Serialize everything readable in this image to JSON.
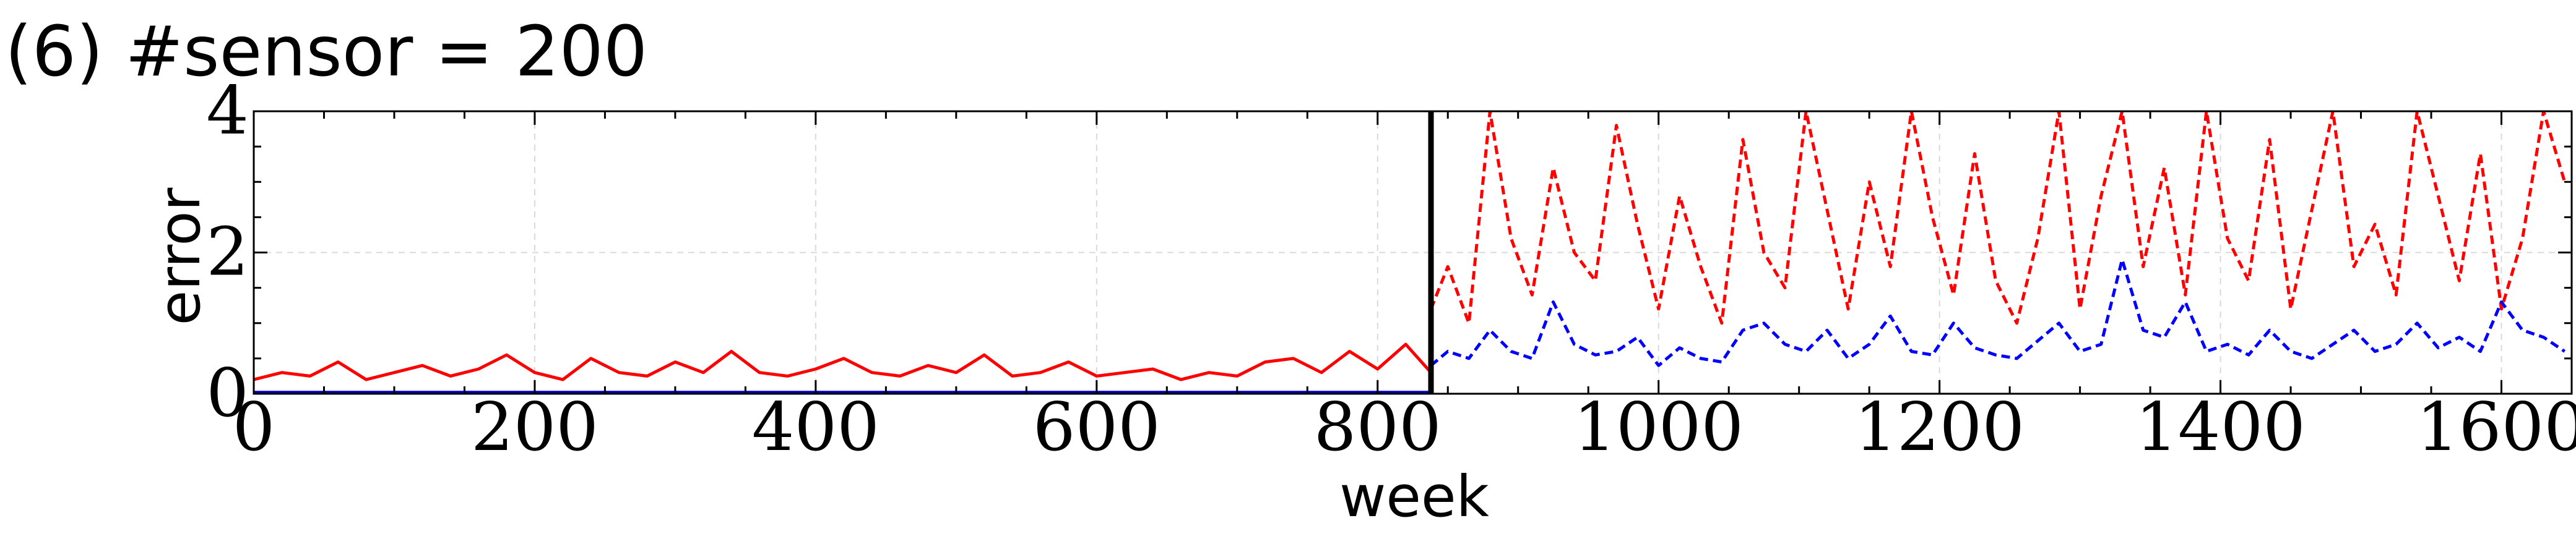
{
  "chart_data": {
    "type": "line",
    "title": "(6) #sensor = 200",
    "xlabel": "week",
    "ylabel": "error",
    "xlim": [
      0,
      1650
    ],
    "ylim": [
      0,
      4
    ],
    "xticks": [
      "0",
      "200",
      "400",
      "600",
      "800",
      "1000",
      "1200",
      "1400",
      "1600"
    ],
    "xtick_values": [
      0,
      200,
      400,
      600,
      800,
      1000,
      1200,
      1400,
      1600
    ],
    "yticks": [
      "0",
      "2",
      "4"
    ],
    "ytick_values": [
      0,
      2,
      4
    ],
    "grid": true,
    "vertical_marker_x": 838,
    "series": [
      {
        "style": "solid",
        "color": "#ff0000",
        "x": [
          0,
          20,
          40,
          60,
          80,
          100,
          120,
          140,
          160,
          180,
          200,
          220,
          240,
          260,
          280,
          300,
          320,
          340,
          360,
          380,
          400,
          420,
          440,
          460,
          480,
          500,
          520,
          540,
          560,
          580,
          600,
          620,
          640,
          660,
          680,
          700,
          720,
          740,
          760,
          780,
          800,
          820,
          838
        ],
        "y": [
          0.2,
          0.3,
          0.25,
          0.45,
          0.2,
          0.3,
          0.4,
          0.25,
          0.35,
          0.55,
          0.3,
          0.2,
          0.5,
          0.3,
          0.25,
          0.45,
          0.3,
          0.6,
          0.3,
          0.25,
          0.35,
          0.5,
          0.3,
          0.25,
          0.4,
          0.3,
          0.55,
          0.25,
          0.3,
          0.45,
          0.25,
          0.3,
          0.35,
          0.2,
          0.3,
          0.25,
          0.45,
          0.5,
          0.3,
          0.6,
          0.35,
          0.7,
          0.3
        ]
      },
      {
        "style": "solid",
        "color": "#0000cc",
        "x": [
          0,
          838
        ],
        "y": [
          0.02,
          0.02
        ]
      },
      {
        "style": "dashed",
        "color": "#ff0000",
        "x": [
          838,
          850,
          865,
          880,
          895,
          910,
          925,
          940,
          955,
          970,
          985,
          1000,
          1015,
          1030,
          1045,
          1060,
          1075,
          1090,
          1105,
          1120,
          1135,
          1150,
          1165,
          1180,
          1195,
          1210,
          1225,
          1240,
          1255,
          1270,
          1285,
          1300,
          1315,
          1330,
          1345,
          1360,
          1375,
          1390,
          1405,
          1420,
          1435,
          1450,
          1465,
          1480,
          1495,
          1510,
          1525,
          1540,
          1555,
          1570,
          1585,
          1600,
          1615,
          1630,
          1645
        ],
        "y": [
          1.2,
          1.8,
          1.0,
          4.0,
          2.2,
          1.4,
          3.2,
          2.0,
          1.6,
          3.8,
          2.4,
          1.2,
          2.8,
          1.8,
          1.0,
          3.6,
          2.0,
          1.5,
          4.0,
          2.6,
          1.2,
          3.0,
          1.8,
          4.0,
          2.5,
          1.4,
          3.4,
          1.6,
          1.0,
          2.2,
          4.0,
          1.2,
          2.8,
          4.0,
          1.8,
          3.2,
          1.4,
          4.0,
          2.2,
          1.6,
          3.6,
          1.2,
          2.6,
          4.0,
          1.8,
          2.4,
          1.4,
          4.0,
          2.8,
          1.6,
          3.4,
          1.2,
          2.2,
          4.0,
          3.0
        ]
      },
      {
        "style": "dashed",
        "color": "#0000ff",
        "x": [
          838,
          850,
          865,
          880,
          895,
          910,
          925,
          940,
          955,
          970,
          985,
          1000,
          1015,
          1030,
          1045,
          1060,
          1075,
          1090,
          1105,
          1120,
          1135,
          1150,
          1165,
          1180,
          1195,
          1210,
          1225,
          1240,
          1255,
          1270,
          1285,
          1300,
          1315,
          1330,
          1345,
          1360,
          1375,
          1390,
          1405,
          1420,
          1435,
          1450,
          1465,
          1480,
          1495,
          1510,
          1525,
          1540,
          1555,
          1570,
          1585,
          1600,
          1615,
          1630,
          1645
        ],
        "y": [
          0.4,
          0.6,
          0.5,
          0.9,
          0.6,
          0.5,
          1.3,
          0.7,
          0.55,
          0.6,
          0.8,
          0.4,
          0.65,
          0.5,
          0.45,
          0.9,
          1.0,
          0.7,
          0.6,
          0.9,
          0.5,
          0.7,
          1.1,
          0.6,
          0.55,
          1.0,
          0.65,
          0.55,
          0.5,
          0.75,
          1.0,
          0.6,
          0.7,
          1.9,
          0.9,
          0.8,
          1.3,
          0.6,
          0.7,
          0.55,
          0.9,
          0.6,
          0.5,
          0.7,
          0.9,
          0.6,
          0.7,
          1.0,
          0.65,
          0.8,
          0.6,
          1.3,
          0.9,
          0.8,
          0.6
        ]
      }
    ]
  }
}
